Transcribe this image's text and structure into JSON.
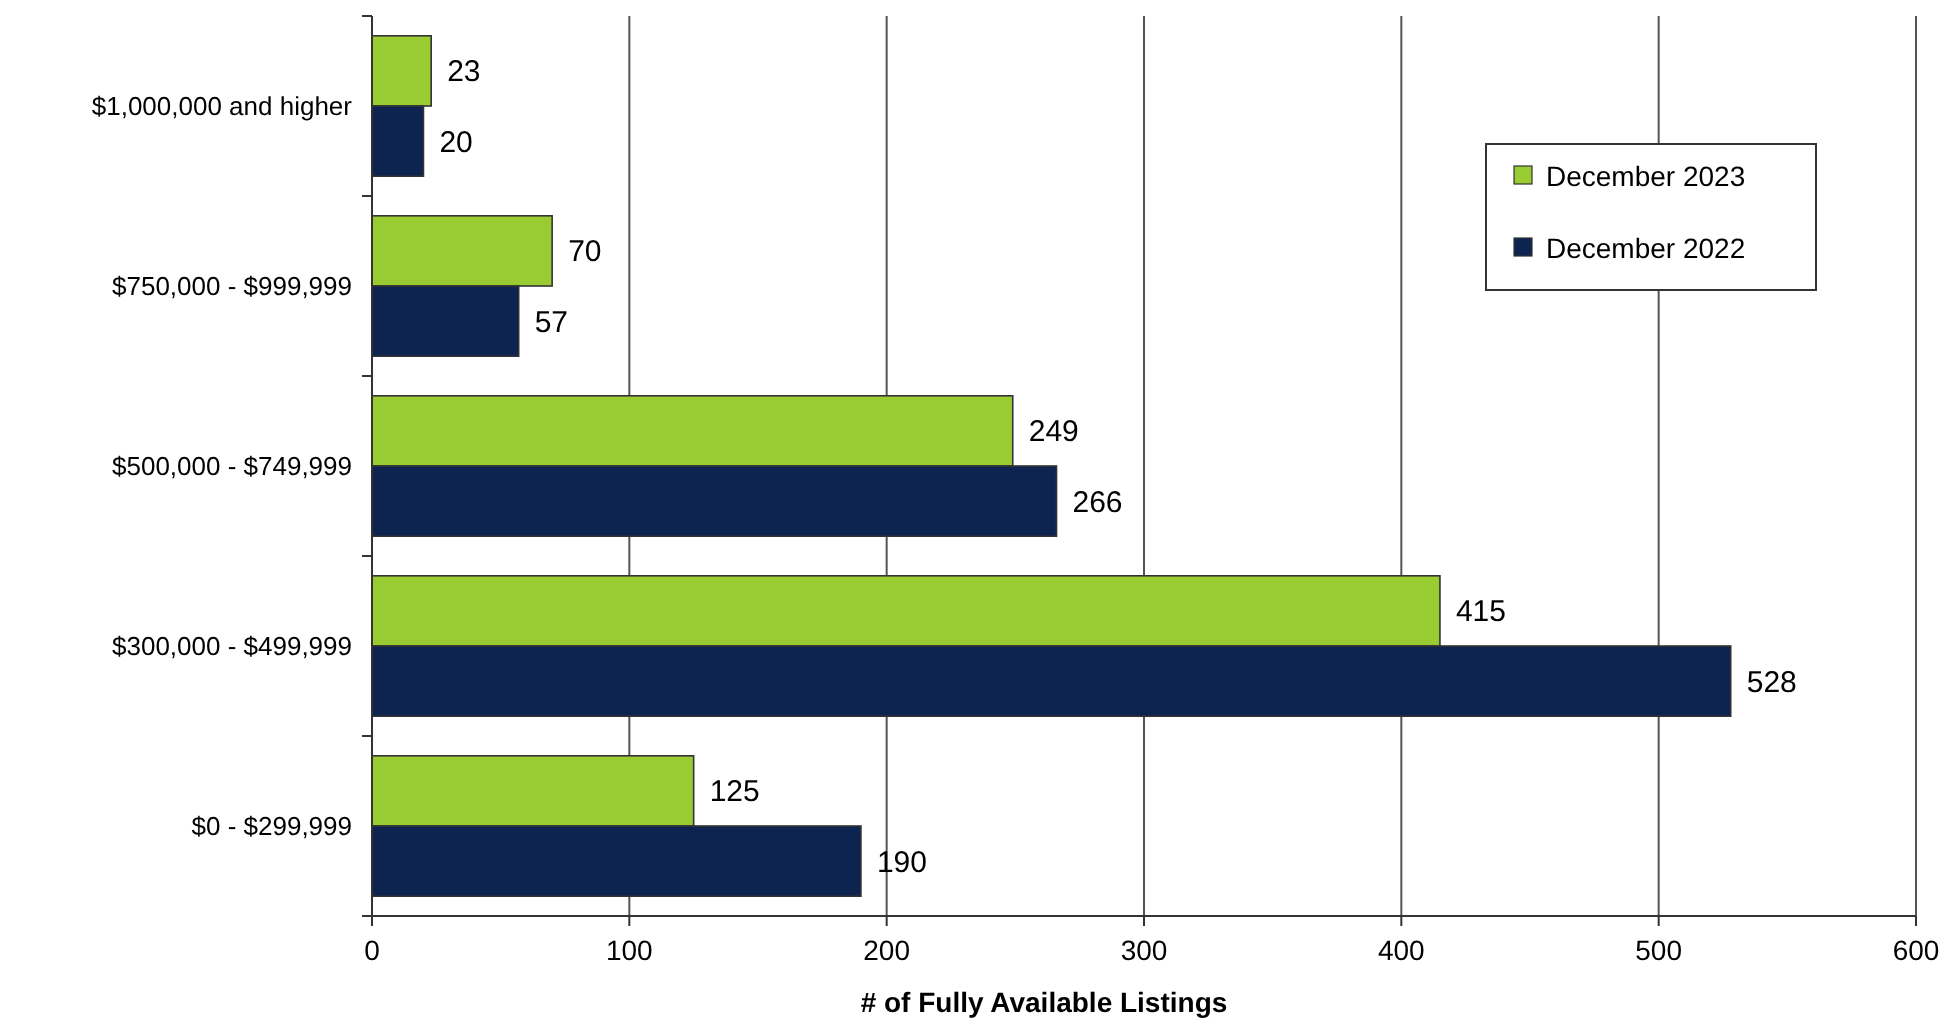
{
  "chart_data": {
    "type": "bar",
    "orientation": "horizontal",
    "xlabel": "# of Fully Available Listings",
    "categories": [
      "$1,000,000 and higher",
      "$750,000 - $999,999",
      "$500,000 - $749,999",
      "$300,000 - $499,999",
      "$0 - $299,999"
    ],
    "series": [
      {
        "name": "December 2023",
        "color": "#99cc33",
        "values": [
          23,
          70,
          249,
          415,
          125
        ]
      },
      {
        "name": "December 2022",
        "color": "#0d2350",
        "values": [
          20,
          57,
          266,
          528,
          190
        ]
      }
    ],
    "xlim": [
      0,
      600
    ],
    "xticks": [
      0,
      100,
      200,
      300,
      400,
      500,
      600
    ],
    "grid": "x",
    "legend": "top right",
    "data_labels": true
  }
}
